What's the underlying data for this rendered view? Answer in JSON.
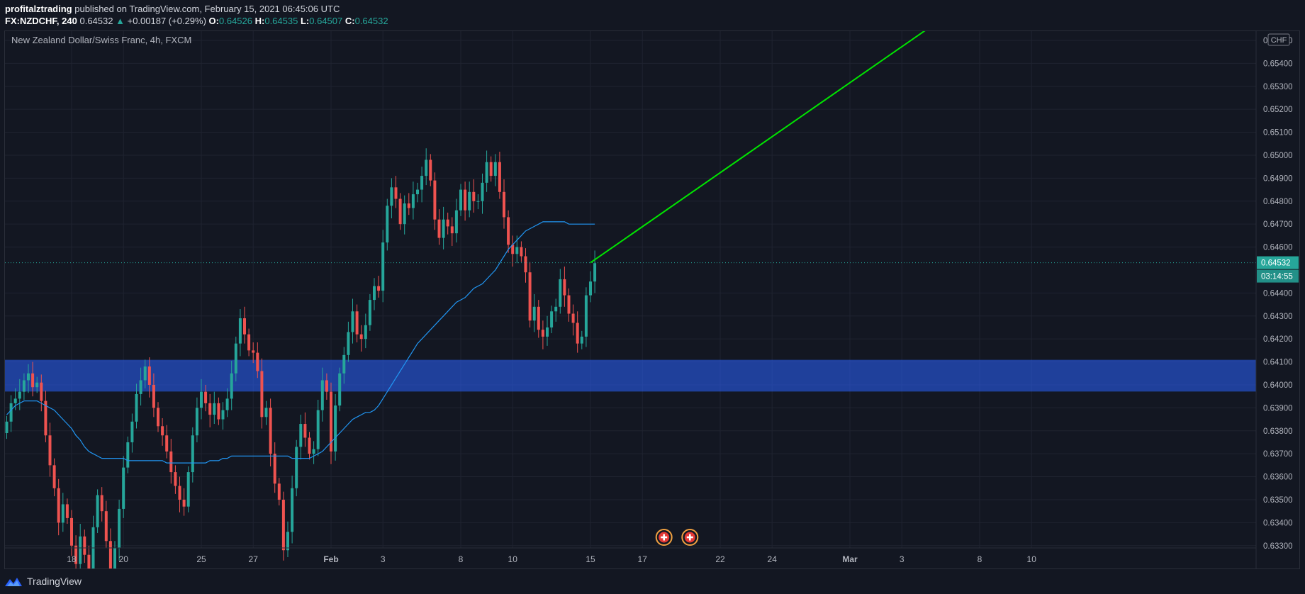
{
  "header": {
    "author": "profitalztrading",
    "published_text": "published on TradingView.com, February 15, 2021 06:45:06 UTC",
    "symbol": "FX:NZDCHF, 240",
    "last": "0.64532",
    "change": "+0.00187 (+0.29%)",
    "o_label": "O:",
    "o": "0.64526",
    "h_label": "H:",
    "h": "0.64535",
    "l_label": "L:",
    "l": "0.64507",
    "c_label": "C:",
    "c": "0.64532"
  },
  "footer": {
    "brand": "TradingView"
  },
  "colors": {
    "background": "#131722",
    "up": "#26a69a",
    "down": "#ef5350",
    "ma": "#2196f3",
    "zone": "#2962ff",
    "trendline": "#00e600"
  },
  "chart_data": {
    "type": "candlestick",
    "title": "New Zealand Dollar/Swiss Franc, 4h, FXCM",
    "currency": "CHF",
    "price_tag": "0.64532",
    "countdown": "03:14:55",
    "y_ticks": [
      "0.65500",
      "0.65400",
      "0.65300",
      "0.65200",
      "0.65100",
      "0.65000",
      "0.64900",
      "0.64800",
      "0.64700",
      "0.64600",
      "0.64400",
      "0.64300",
      "0.64200",
      "0.64100",
      "0.64000",
      "0.63900",
      "0.63800",
      "0.63700",
      "0.63600",
      "0.63500",
      "0.63400",
      "0.63300"
    ],
    "y_range": [
      0.6329,
      0.6554
    ],
    "x_ticks": [
      {
        "label": "18",
        "i": 15,
        "bold": false
      },
      {
        "label": "20",
        "i": 27,
        "bold": false
      },
      {
        "label": "25",
        "i": 45,
        "bold": false
      },
      {
        "label": "27",
        "i": 57,
        "bold": false
      },
      {
        "label": "Feb",
        "i": 75,
        "bold": true
      },
      {
        "label": "3",
        "i": 87,
        "bold": false
      },
      {
        "label": "8",
        "i": 105,
        "bold": false
      },
      {
        "label": "10",
        "i": 117,
        "bold": false
      },
      {
        "label": "15",
        "i": 135,
        "bold": false
      },
      {
        "label": "17",
        "i": 147,
        "bold": false
      },
      {
        "label": "22",
        "i": 165,
        "bold": false
      },
      {
        "label": "24",
        "i": 177,
        "bold": false
      },
      {
        "label": "Mar",
        "i": 195,
        "bold": true
      },
      {
        "label": "3",
        "i": 207,
        "bold": false
      },
      {
        "label": "8",
        "i": 225,
        "bold": false
      },
      {
        "label": "10",
        "i": 237,
        "bold": false
      }
    ],
    "support_zone": [
      0.63971,
      0.64109
    ],
    "current_price": 0.64532,
    "trendline": {
      "start": [
        135,
        0.64532
      ],
      "end": [
        212.4,
        0.65543
      ]
    },
    "event_markers": [
      152,
      158
    ],
    "close": [
      0.6384,
      0.6392,
      0.6394,
      0.6397,
      0.6402,
      0.6405,
      0.6399,
      0.6401,
      0.6393,
      0.6378,
      0.6365,
      0.6355,
      0.634,
      0.6348,
      0.6342,
      0.633,
      0.6322,
      0.6334,
      0.6326,
      0.6316,
      0.6338,
      0.6352,
      0.6345,
      0.6332,
      0.6312,
      0.6329,
      0.6346,
      0.6364,
      0.6375,
      0.6384,
      0.6396,
      0.6402,
      0.6408,
      0.64,
      0.639,
      0.6382,
      0.6378,
      0.6371,
      0.6362,
      0.6356,
      0.635,
      0.6347,
      0.6362,
      0.6378,
      0.639,
      0.6397,
      0.6392,
      0.6387,
      0.6392,
      0.6385,
      0.6389,
      0.6394,
      0.6405,
      0.6418,
      0.6429,
      0.6422,
      0.6415,
      0.6414,
      0.6406,
      0.6386,
      0.639,
      0.637,
      0.6357,
      0.635,
      0.6328,
      0.6336,
      0.6355,
      0.6373,
      0.6383,
      0.6377,
      0.637,
      0.6372,
      0.6389,
      0.6402,
      0.6397,
      0.6371,
      0.6391,
      0.6405,
      0.6413,
      0.6423,
      0.6432,
      0.6422,
      0.642,
      0.6426,
      0.6437,
      0.6443,
      0.6441,
      0.6462,
      0.6478,
      0.6486,
      0.6481,
      0.647,
      0.6479,
      0.6477,
      0.6483,
      0.6485,
      0.6491,
      0.6498,
      0.6489,
      0.6472,
      0.6464,
      0.6472,
      0.6469,
      0.6466,
      0.6476,
      0.6485,
      0.6476,
      0.6484,
      0.648,
      0.648,
      0.6488,
      0.6497,
      0.6491,
      0.6497,
      0.6484,
      0.6473,
      0.6461,
      0.6457,
      0.646,
      0.6456,
      0.6449,
      0.6428,
      0.6434,
      0.6424,
      0.6421,
      0.6425,
      0.6432,
      0.6434,
      0.6446,
      0.6439,
      0.6431,
      0.6427,
      0.6418,
      0.6421,
      0.6439,
      0.6445,
      0.6453
    ],
    "ma": [
      0.6387,
      0.6389,
      0.6391,
      0.6392,
      0.6393,
      0.6393,
      0.6393,
      0.6393,
      0.6392,
      0.6391,
      0.639,
      0.6389,
      0.6387,
      0.6385,
      0.6383,
      0.6381,
      0.6378,
      0.6376,
      0.6373,
      0.6371,
      0.637,
      0.6369,
      0.6368,
      0.6368,
      0.6368,
      0.6368,
      0.6368,
      0.6368,
      0.6367,
      0.6367,
      0.6367,
      0.6367,
      0.6367,
      0.6367,
      0.6367,
      0.6367,
      0.6367,
      0.6366,
      0.6366,
      0.6366,
      0.6366,
      0.6366,
      0.6366,
      0.6366,
      0.6366,
      0.6366,
      0.6366,
      0.6367,
      0.6367,
      0.6367,
      0.6368,
      0.6368,
      0.6369,
      0.6369,
      0.6369,
      0.6369,
      0.6369,
      0.6369,
      0.6369,
      0.6369,
      0.6369,
      0.6369,
      0.6369,
      0.6369,
      0.6369,
      0.6369,
      0.6368,
      0.6368,
      0.6368,
      0.6368,
      0.6368,
      0.6369,
      0.637,
      0.6371,
      0.6373,
      0.6375,
      0.6377,
      0.6379,
      0.6381,
      0.6383,
      0.6385,
      0.6386,
      0.6387,
      0.6388,
      0.6388,
      0.6389,
      0.6391,
      0.6394,
      0.6397,
      0.64,
      0.6403,
      0.6406,
      0.6409,
      0.6412,
      0.6415,
      0.6418,
      0.642,
      0.6422,
      0.6424,
      0.6426,
      0.6428,
      0.643,
      0.6432,
      0.6434,
      0.6436,
      0.6437,
      0.6438,
      0.644,
      0.6442,
      0.6443,
      0.6444,
      0.6446,
      0.6448,
      0.645,
      0.6453,
      0.6456,
      0.6459,
      0.6461,
      0.6463,
      0.6465,
      0.6467,
      0.6468,
      0.6469,
      0.647,
      0.6471,
      0.6471,
      0.6471,
      0.6471,
      0.6471,
      0.6471,
      0.647,
      0.647,
      0.647,
      0.647,
      0.647,
      0.647,
      0.647
    ]
  }
}
